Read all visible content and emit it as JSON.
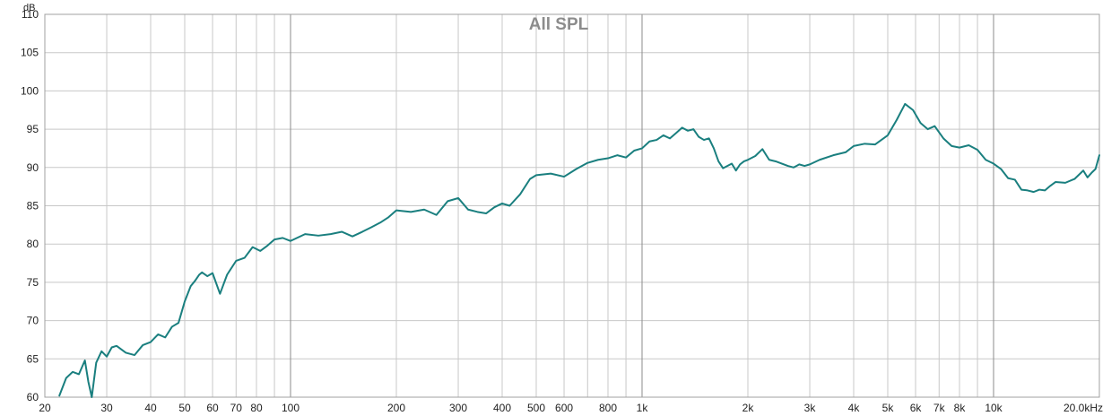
{
  "chart_data": {
    "type": "line",
    "title": "All SPL",
    "y_unit": "dB",
    "x_scale": "log",
    "xlim": [
      20,
      20000
    ],
    "ylim": [
      60,
      110
    ],
    "grid": true,
    "legend": "none",
    "colors": {
      "line": "#1a7f7f",
      "grid_minor": "#c8c8c8",
      "grid_major": "#8c8c8c",
      "frame": "#a0a0a0"
    },
    "x_ticks": [
      {
        "value": 20,
        "label": "20"
      },
      {
        "value": 30,
        "label": "30"
      },
      {
        "value": 40,
        "label": "40"
      },
      {
        "value": 50,
        "label": "50"
      },
      {
        "value": 60,
        "label": "60"
      },
      {
        "value": 70,
        "label": "70"
      },
      {
        "value": 80,
        "label": "80"
      },
      {
        "value": 90,
        "label": ""
      },
      {
        "value": 100,
        "label": "100"
      },
      {
        "value": 200,
        "label": "200"
      },
      {
        "value": 300,
        "label": "300"
      },
      {
        "value": 400,
        "label": "400"
      },
      {
        "value": 500,
        "label": "500"
      },
      {
        "value": 600,
        "label": "600"
      },
      {
        "value": 700,
        "label": ""
      },
      {
        "value": 800,
        "label": "800"
      },
      {
        "value": 900,
        "label": ""
      },
      {
        "value": 1000,
        "label": "1k"
      },
      {
        "value": 2000,
        "label": "2k"
      },
      {
        "value": 3000,
        "label": "3k"
      },
      {
        "value": 4000,
        "label": "4k"
      },
      {
        "value": 5000,
        "label": "5k"
      },
      {
        "value": 6000,
        "label": "6k"
      },
      {
        "value": 7000,
        "label": "7k"
      },
      {
        "value": 8000,
        "label": "8k"
      },
      {
        "value": 9000,
        "label": ""
      },
      {
        "value": 10000,
        "label": "10k"
      },
      {
        "value": 20000,
        "label": "20.0kHz"
      }
    ],
    "y_ticks": [
      60,
      65,
      70,
      75,
      80,
      85,
      90,
      95,
      100,
      105,
      110
    ],
    "series": [
      {
        "x": [
          22,
          23,
          24,
          25,
          26,
          26.6,
          27.2,
          28,
          29,
          30,
          31,
          32,
          34,
          36,
          38,
          40,
          42,
          44,
          46,
          48,
          50,
          52,
          53.5,
          55,
          56,
          58,
          60,
          63,
          66,
          70,
          74,
          78,
          82,
          86,
          90,
          95,
          100,
          110,
          120,
          130,
          140,
          150,
          160,
          170,
          180,
          190,
          200,
          220,
          240,
          260,
          280,
          300,
          320,
          340,
          360,
          380,
          400,
          420,
          450,
          480,
          500,
          550,
          600,
          650,
          700,
          750,
          800,
          850,
          900,
          950,
          1000,
          1050,
          1100,
          1150,
          1200,
          1250,
          1300,
          1350,
          1400,
          1450,
          1500,
          1550,
          1600,
          1650,
          1700,
          1800,
          1850,
          1900,
          1950,
          2000,
          2100,
          2200,
          2300,
          2400,
          2500,
          2600,
          2700,
          2800,
          2900,
          3000,
          3200,
          3500,
          3800,
          4000,
          4300,
          4600,
          5000,
          5300,
          5600,
          5900,
          6200,
          6500,
          6800,
          7200,
          7600,
          8000,
          8500,
          9000,
          9500,
          10000,
          10500,
          11000,
          11500,
          12000,
          12500,
          13000,
          13500,
          14000,
          14500,
          15000,
          16000,
          17000,
          18000,
          18500,
          19000,
          19500,
          20000
        ],
        "y": [
          60.2,
          62.5,
          63.3,
          63.0,
          64.8,
          62.0,
          59.5,
          64.5,
          66.0,
          65.3,
          66.5,
          66.7,
          65.8,
          65.5,
          66.8,
          67.2,
          68.2,
          67.8,
          69.2,
          69.7,
          72.5,
          74.5,
          75.2,
          76.0,
          76.3,
          75.8,
          76.2,
          73.5,
          76.0,
          77.8,
          78.2,
          79.6,
          79.1,
          79.8,
          80.6,
          80.8,
          80.4,
          81.3,
          81.1,
          81.3,
          81.6,
          81.0,
          81.6,
          82.2,
          82.8,
          83.5,
          84.4,
          84.2,
          84.5,
          83.8,
          85.6,
          86.0,
          84.5,
          84.2,
          84.0,
          84.8,
          85.3,
          85.0,
          86.5,
          88.5,
          89.0,
          89.2,
          88.8,
          89.8,
          90.6,
          91.0,
          91.2,
          91.6,
          91.3,
          92.2,
          92.5,
          93.4,
          93.6,
          94.2,
          93.8,
          94.5,
          95.2,
          94.8,
          95.0,
          94.0,
          93.6,
          93.8,
          92.5,
          90.8,
          89.9,
          90.5,
          89.6,
          90.4,
          90.8,
          91.0,
          91.5,
          92.4,
          91.0,
          90.8,
          90.5,
          90.2,
          90.0,
          90.4,
          90.2,
          90.4,
          91.0,
          91.6,
          92.0,
          92.8,
          93.1,
          93.0,
          94.2,
          96.2,
          98.3,
          97.5,
          95.8,
          95.0,
          95.4,
          93.8,
          92.8,
          92.6,
          92.9,
          92.3,
          91.0,
          90.5,
          89.8,
          88.6,
          88.4,
          87.1,
          87.0,
          86.8,
          87.1,
          87.0,
          87.6,
          88.1,
          88.0,
          88.5,
          89.6,
          88.7,
          89.3,
          89.8,
          91.6
        ]
      }
    ]
  }
}
